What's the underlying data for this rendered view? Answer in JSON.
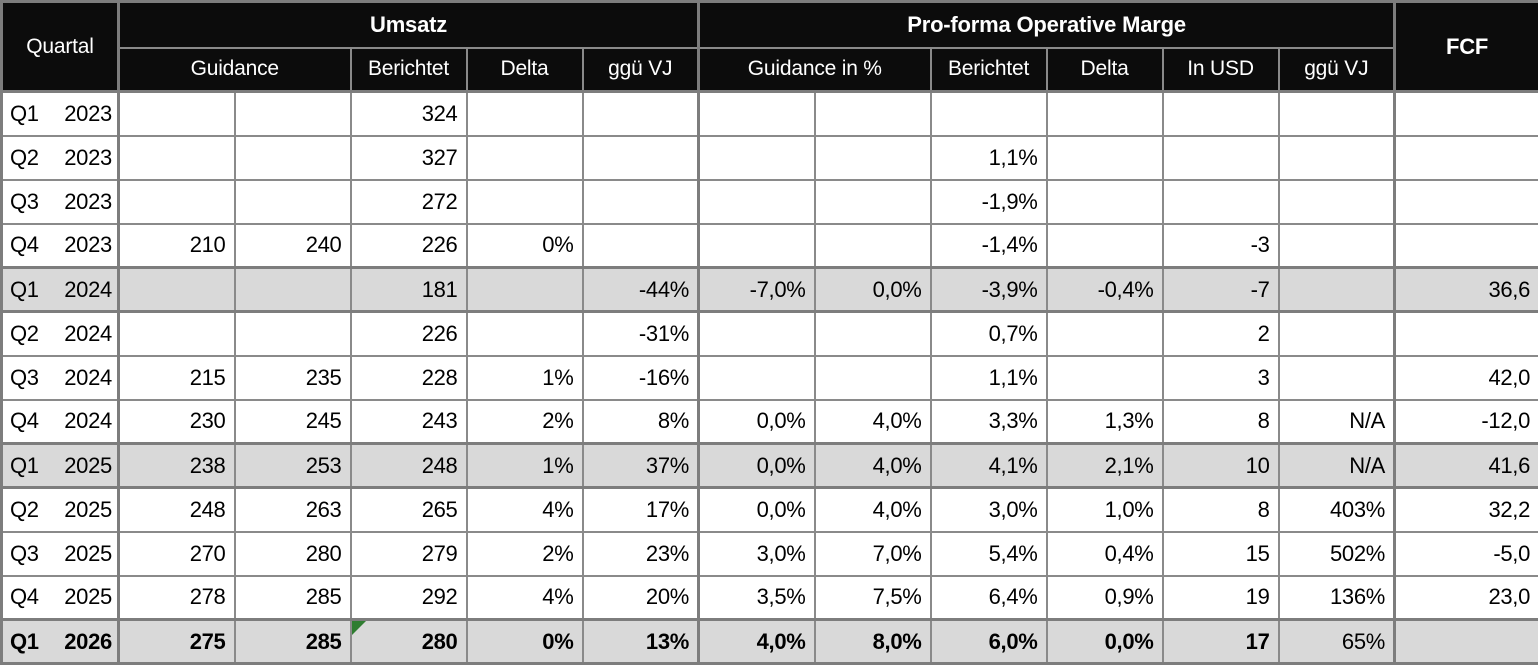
{
  "colors": {
    "header_bg": "#0c0c0c",
    "header_text": "#ffffff",
    "grid": "#8a8a8a",
    "grid_thick": "#7d7d7d",
    "highlight_row": "#d9d9d9",
    "marker_green": "#2f7d31"
  },
  "icons": {
    "formula_flag": "green-corner-triangle"
  },
  "table": {
    "header": {
      "quartal": "Quartal",
      "groups": [
        {
          "label": "Umsatz",
          "sub": [
            "Guidance",
            "Berichtet",
            "Delta",
            "ggü VJ"
          ]
        },
        {
          "label": "Pro-forma Operative Marge",
          "sub": [
            "Guidance in %",
            "Berichtet",
            "Delta",
            "In USD",
            "ggü VJ"
          ]
        }
      ],
      "fcf": "FCF"
    },
    "rows": [
      {
        "quarter": "Q1",
        "year": "2023",
        "highlight": false,
        "bold": false,
        "cells": [
          "",
          "",
          "324",
          "",
          "",
          "",
          "",
          "",
          "",
          "",
          "",
          ""
        ]
      },
      {
        "quarter": "Q2",
        "year": "2023",
        "highlight": false,
        "bold": false,
        "cells": [
          "",
          "",
          "327",
          "",
          "",
          "",
          "",
          "1,1%",
          "",
          "",
          "",
          ""
        ]
      },
      {
        "quarter": "Q3",
        "year": "2023",
        "highlight": false,
        "bold": false,
        "cells": [
          "",
          "",
          "272",
          "",
          "",
          "",
          "",
          "-1,9%",
          "",
          "",
          "",
          ""
        ]
      },
      {
        "quarter": "Q4",
        "year": "2023",
        "highlight": false,
        "bold": false,
        "cells": [
          "210",
          "240",
          "226",
          "0%",
          "",
          "",
          "",
          "-1,4%",
          "",
          "-3",
          "",
          ""
        ]
      },
      {
        "quarter": "Q1",
        "year": "2024",
        "highlight": true,
        "bold": false,
        "cells": [
          "",
          "",
          "181",
          "",
          "-44%",
          "-7,0%",
          "0,0%",
          "-3,9%",
          "-0,4%",
          "-7",
          "",
          "36,6"
        ]
      },
      {
        "quarter": "Q2",
        "year": "2024",
        "highlight": false,
        "bold": false,
        "cells": [
          "",
          "",
          "226",
          "",
          "-31%",
          "",
          "",
          "0,7%",
          "",
          "2",
          "",
          ""
        ]
      },
      {
        "quarter": "Q3",
        "year": "2024",
        "highlight": false,
        "bold": false,
        "cells": [
          "215",
          "235",
          "228",
          "1%",
          "-16%",
          "",
          "",
          "1,1%",
          "",
          "3",
          "",
          "42,0"
        ]
      },
      {
        "quarter": "Q4",
        "year": "2024",
        "highlight": false,
        "bold": false,
        "cells": [
          "230",
          "245",
          "243",
          "2%",
          "8%",
          "0,0%",
          "4,0%",
          "3,3%",
          "1,3%",
          "8",
          "N/A",
          "-12,0"
        ]
      },
      {
        "quarter": "Q1",
        "year": "2025",
        "highlight": true,
        "bold": false,
        "cells": [
          "238",
          "253",
          "248",
          "1%",
          "37%",
          "0,0%",
          "4,0%",
          "4,1%",
          "2,1%",
          "10",
          "N/A",
          "41,6"
        ]
      },
      {
        "quarter": "Q2",
        "year": "2025",
        "highlight": false,
        "bold": false,
        "cells": [
          "248",
          "263",
          "265",
          "4%",
          "17%",
          "0,0%",
          "4,0%",
          "3,0%",
          "1,0%",
          "8",
          "403%",
          "32,2"
        ]
      },
      {
        "quarter": "Q3",
        "year": "2025",
        "highlight": false,
        "bold": false,
        "cells": [
          "270",
          "280",
          "279",
          "2%",
          "23%",
          "3,0%",
          "7,0%",
          "5,4%",
          "0,4%",
          "15",
          "502%",
          "-5,0"
        ]
      },
      {
        "quarter": "Q4",
        "year": "2025",
        "highlight": false,
        "bold": false,
        "cells": [
          "278",
          "285",
          "292",
          "4%",
          "20%",
          "3,5%",
          "7,5%",
          "6,4%",
          "0,9%",
          "19",
          "136%",
          "23,0"
        ]
      },
      {
        "quarter": "Q1",
        "year": "2026",
        "highlight": true,
        "bold": true,
        "marker_col": 2,
        "not_bold_cols": [
          10
        ],
        "cells": [
          "275",
          "285",
          "280",
          "0%",
          "13%",
          "4,0%",
          "8,0%",
          "6,0%",
          "0,0%",
          "17",
          "65%",
          ""
        ]
      }
    ]
  }
}
